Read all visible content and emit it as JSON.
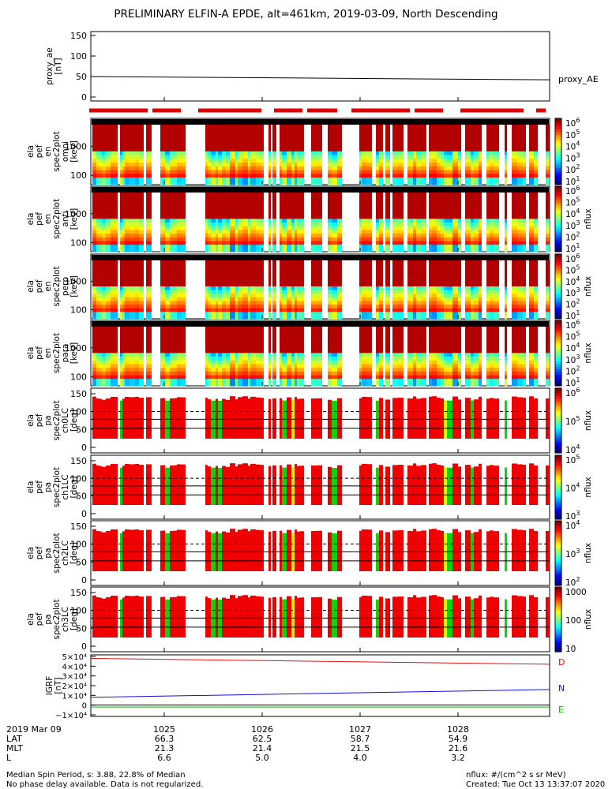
{
  "title": "PRELIMINARY ELFIN-A EPDE, alt=461km, 2019-03-09, North Descending",
  "panels": [
    {
      "id": "proxy_ae",
      "ylabel": [
        "proxy_ae",
        "[nT]"
      ],
      "yticks": [
        "150",
        "100",
        "50",
        "0"
      ],
      "legend": "proxy_AE"
    },
    {
      "id": "en_omni",
      "ylabel": [
        "ela",
        "pef",
        "en",
        "spec2plot",
        "omni",
        "[keV]"
      ],
      "yticks": [
        "1000",
        "100"
      ],
      "cb_ticks": [
        "10",
        "10",
        "10",
        "10",
        "10",
        "10"
      ],
      "cb_exps": [
        "6",
        "5",
        "4",
        "3",
        "2",
        "1"
      ],
      "cb_label": ""
    },
    {
      "id": "en_anti",
      "ylabel": [
        "ela",
        "pef",
        "en",
        "spec2plot",
        "anti",
        "[keV]"
      ],
      "yticks": [
        "1000",
        "100"
      ],
      "cb_ticks": [
        "10",
        "10",
        "10",
        "10",
        "10",
        "10"
      ],
      "cb_exps": [
        "6",
        "5",
        "4",
        "3",
        "2",
        "1"
      ],
      "cb_label": "nflux"
    },
    {
      "id": "en_perp",
      "ylabel": [
        "ela",
        "pef",
        "en",
        "spec2plot",
        "perp",
        "[keV]"
      ],
      "yticks": [
        "1000",
        "100"
      ],
      "cb_ticks": [
        "10",
        "10",
        "10",
        "10",
        "10",
        "10"
      ],
      "cb_exps": [
        "6",
        "5",
        "4",
        "3",
        "2",
        "1"
      ],
      "cb_label": "nflux"
    },
    {
      "id": "en_para",
      "ylabel": [
        "ela",
        "pef",
        "en",
        "spec2plot",
        "para",
        "[keV]"
      ],
      "yticks": [
        "1000",
        "100"
      ],
      "cb_ticks": [
        "10",
        "10",
        "10",
        "10",
        "10",
        "10"
      ],
      "cb_exps": [
        "6",
        "5",
        "4",
        "3",
        "2",
        "1"
      ],
      "cb_label": "nflux"
    },
    {
      "id": "pa_ch0",
      "ylabel": [
        "ela",
        "pef",
        "pa",
        "spec2plot",
        "ch0LC",
        "[deg]"
      ],
      "yticks": [
        "150",
        "100",
        "50",
        "0"
      ],
      "cb_ticks": [
        "10",
        "10",
        "10"
      ],
      "cb_exps": [
        "6",
        "5",
        "4"
      ],
      "cb_label": "nflux"
    },
    {
      "id": "pa_ch1",
      "ylabel": [
        "ela",
        "pef",
        "pa",
        "spec2plot",
        "ch1LC",
        "[deg]"
      ],
      "yticks": [
        "150",
        "100",
        "50",
        "0"
      ],
      "cb_ticks": [
        "10",
        "10",
        "10"
      ],
      "cb_exps": [
        "5",
        "4",
        "3"
      ],
      "cb_label": "nflux"
    },
    {
      "id": "pa_ch2",
      "ylabel": [
        "ela",
        "pef",
        "pa",
        "spec2plot",
        "ch2LC",
        "[deg]"
      ],
      "yticks": [
        "150",
        "100",
        "50",
        "0"
      ],
      "cb_ticks": [
        "10",
        "10",
        "10"
      ],
      "cb_exps": [
        "4",
        "3",
        "2"
      ],
      "cb_label": "nflux"
    },
    {
      "id": "pa_ch3",
      "ylabel": [
        "ela",
        "pef",
        "pa",
        "spec2plot",
        "ch3LC",
        "[deg]"
      ],
      "yticks": [
        "150",
        "100",
        "50",
        "0"
      ],
      "cb_ticks": [
        "1000",
        "100",
        "10"
      ],
      "cb_exps": [
        "",
        "",
        ""
      ],
      "cb_label": "nflux"
    },
    {
      "id": "igrf",
      "ylabel": [
        "IGRF",
        "[nT]"
      ],
      "yticks": [
        "5×10⁴",
        "4×10⁴",
        "3×10⁴",
        "2×10⁴",
        "1×10⁴",
        "0",
        "−1×10⁴"
      ],
      "legend": [
        "D",
        "N",
        "E"
      ]
    }
  ],
  "legend_colors": {
    "D": "#e01010",
    "N": "#1010e0",
    "E": "#10b010"
  },
  "time_axis": {
    "date": "2019 Mar 09",
    "row_labels": [
      "LAT",
      "MLT",
      "L"
    ],
    "ticks": [
      "1025",
      "1026",
      "1027",
      "1028"
    ],
    "LAT": [
      "66.3",
      "62.5",
      "58.7",
      "54.9"
    ],
    "MLT": [
      "21.3",
      "21.4",
      "21.5",
      "21.6"
    ],
    "L": [
      "6.6",
      "5.0",
      "4.0",
      "3.2"
    ]
  },
  "footer": {
    "left1": "Median Spin Period, s: 3.88, 22.8% of Median",
    "left2": "No phase delay available. Data is not regularized.",
    "right1": "nflux: #/(cm^2 s sr MeV)",
    "right2": "Created: Tue Oct 13 13:37:07 2020"
  },
  "chart_data": [
    {
      "type": "line",
      "title": "proxy_ae",
      "series": [
        {
          "name": "proxy_AE",
          "x": [
            "1024.2",
            "1028.9"
          ],
          "values": [
            50,
            42
          ]
        }
      ],
      "ylim": [
        0,
        160
      ]
    },
    {
      "type": "heatmap",
      "ylabel": "ela pef en spec2plot omni [keV]",
      "yscale": "log",
      "ylim": [
        60,
        8000
      ],
      "zscale": "log",
      "zlim": [
        10,
        1000000
      ]
    },
    {
      "type": "heatmap",
      "ylabel": "ela pef en spec2plot anti [keV]",
      "yscale": "log",
      "ylim": [
        60,
        8000
      ],
      "zscale": "log",
      "zlim": [
        10,
        1000000
      ]
    },
    {
      "type": "heatmap",
      "ylabel": "ela pef en spec2plot perp [keV]",
      "yscale": "log",
      "ylim": [
        60,
        8000
      ],
      "zscale": "log",
      "zlim": [
        10,
        1000000
      ]
    },
    {
      "type": "heatmap",
      "ylabel": "ela pef en spec2plot para [keV]",
      "yscale": "log",
      "ylim": [
        60,
        8000
      ],
      "zscale": "log",
      "zlim": [
        10,
        1000000
      ]
    },
    {
      "type": "heatmap",
      "ylabel": "ela pef pa spec2plot ch0LC [deg]",
      "ylim": [
        0,
        180
      ],
      "zlim": [
        10000,
        1000000
      ]
    },
    {
      "type": "heatmap",
      "ylabel": "ela pef pa spec2plot ch1LC [deg]",
      "ylim": [
        0,
        180
      ],
      "zlim": [
        1000,
        100000
      ]
    },
    {
      "type": "heatmap",
      "ylabel": "ela pef pa spec2plot ch2LC [deg]",
      "ylim": [
        0,
        180
      ],
      "zlim": [
        100,
        10000
      ]
    },
    {
      "type": "heatmap",
      "ylabel": "ela pef pa spec2plot ch3LC [deg]",
      "ylim": [
        0,
        180
      ],
      "zlim": [
        10,
        1000
      ]
    },
    {
      "type": "line",
      "title": "IGRF [nT]",
      "ylim": [
        -10000,
        50000
      ],
      "series": [
        {
          "name": "D",
          "x": [
            "1024.2",
            "1028.9"
          ],
          "values": [
            48000,
            42000
          ]
        },
        {
          "name": "N",
          "x": [
            "1024.2",
            "1028.9"
          ],
          "values": [
            8000,
            16000
          ]
        },
        {
          "name": "E",
          "x": [
            "1024.2",
            "1028.9"
          ],
          "values": [
            -2000,
            -2000
          ]
        }
      ]
    }
  ]
}
